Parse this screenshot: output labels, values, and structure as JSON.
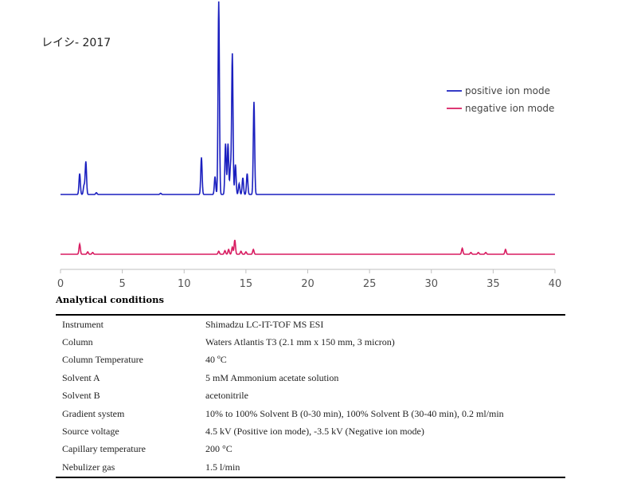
{
  "chart_data": {
    "type": "line",
    "title": "レイシ- 2017",
    "xlim": [
      0,
      40
    ],
    "xticks": [
      0,
      5,
      10,
      15,
      20,
      25,
      30,
      35,
      40
    ],
    "legend_position": "top-right",
    "grid": false,
    "series": [
      {
        "name": "positive ion mode",
        "color": "#1a1fbf",
        "baseline": 1.0,
        "peaks": [
          {
            "x": 1.55,
            "h": 0.35
          },
          {
            "x": 2.05,
            "h": 0.55
          },
          {
            "x": 1.9,
            "h": 0.15
          },
          {
            "x": 2.9,
            "h": 0.03
          },
          {
            "x": 8.1,
            "h": 0.02
          },
          {
            "x": 11.4,
            "h": 0.62
          },
          {
            "x": 12.5,
            "h": 0.3
          },
          {
            "x": 12.8,
            "h": 3.23
          },
          {
            "x": 13.35,
            "h": 0.85
          },
          {
            "x": 13.55,
            "h": 0.85
          },
          {
            "x": 13.75,
            "h": 0.45
          },
          {
            "x": 13.9,
            "h": 2.35
          },
          {
            "x": 14.15,
            "h": 0.5
          },
          {
            "x": 14.45,
            "h": 0.18
          },
          {
            "x": 14.75,
            "h": 0.28
          },
          {
            "x": 15.1,
            "h": 0.35
          },
          {
            "x": 15.65,
            "h": 1.55
          }
        ]
      },
      {
        "name": "negative ion mode",
        "color": "#d81b60",
        "baseline": 0.0,
        "peaks": [
          {
            "x": 1.55,
            "h": 0.17
          },
          {
            "x": 2.2,
            "h": 0.04
          },
          {
            "x": 2.6,
            "h": 0.03
          },
          {
            "x": 12.8,
            "h": 0.05
          },
          {
            "x": 13.3,
            "h": 0.06
          },
          {
            "x": 13.6,
            "h": 0.08
          },
          {
            "x": 13.9,
            "h": 0.12
          },
          {
            "x": 14.1,
            "h": 0.24
          },
          {
            "x": 14.6,
            "h": 0.05
          },
          {
            "x": 15.0,
            "h": 0.04
          },
          {
            "x": 15.6,
            "h": 0.08
          },
          {
            "x": 32.5,
            "h": 0.1
          },
          {
            "x": 33.2,
            "h": 0.03
          },
          {
            "x": 33.8,
            "h": 0.03
          },
          {
            "x": 34.4,
            "h": 0.03
          },
          {
            "x": 36.0,
            "h": 0.08
          }
        ]
      }
    ]
  },
  "conditions": {
    "heading": "Analytical conditions",
    "rows": [
      {
        "param": "Instrument",
        "value": "Shimadzu LC-IT-TOF MS ESI"
      },
      {
        "param": "Column",
        "value": "Waters Atlantis T3 (2.1 mm x 150 mm, 3 micron)"
      },
      {
        "param": "Column Temperature",
        "value": "40 ºC"
      },
      {
        "param": "Solvent A",
        "value": "5 mM Ammonium acetate solution"
      },
      {
        "param": "Solvent B",
        "value": "acetonitrile"
      },
      {
        "param": "Gradient system",
        "value": "10% to 100% Solvent B (0-30 min), 100% Solvent B (30-40 min), 0.2 ml/min"
      },
      {
        "param": "Source voltage",
        "value": "4.5 kV (Positive ion mode), -3.5 kV (Negative ion mode)"
      },
      {
        "param": "Capillary temperature",
        "value": "200 °C"
      },
      {
        "param": "Nebulizer gas",
        "value": "1.5 l/min"
      }
    ]
  }
}
